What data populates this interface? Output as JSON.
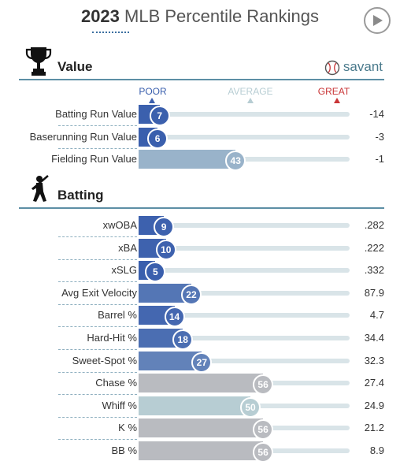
{
  "header": {
    "year": "2023",
    "title_rest": " MLB Percentile Rankings",
    "play_icon": "play-icon"
  },
  "scale": {
    "poor": "POOR",
    "average": "AVERAGE",
    "great": "GREAT"
  },
  "colors": {
    "poor": "#3a5fad",
    "great": "#c93537",
    "average": "#b7cdd3",
    "rule": "#5d8fa5"
  },
  "sections": {
    "value": {
      "title": "Value",
      "icon": "trophy-icon",
      "brand": "savant",
      "brand_icon": "baseball-icon",
      "rows": [
        {
          "label": "Batting Run Value",
          "percentile": 7,
          "value": "-14"
        },
        {
          "label": "Baserunning Run Value",
          "percentile": 6,
          "value": "-3"
        },
        {
          "label": "Fielding Run Value",
          "percentile": 43,
          "value": "-1"
        }
      ]
    },
    "batting": {
      "title": "Batting",
      "icon": "batter-icon",
      "rows": [
        {
          "label": "xwOBA",
          "percentile": 9,
          "value": ".282"
        },
        {
          "label": "xBA",
          "percentile": 10,
          "value": ".222"
        },
        {
          "label": "xSLG",
          "percentile": 5,
          "value": ".332"
        },
        {
          "label": "Avg Exit Velocity",
          "percentile": 22,
          "value": "87.9"
        },
        {
          "label": "Barrel %",
          "percentile": 14,
          "value": "4.7"
        },
        {
          "label": "Hard-Hit %",
          "percentile": 18,
          "value": "34.4"
        },
        {
          "label": "Sweet-Spot %",
          "percentile": 27,
          "value": "32.3"
        },
        {
          "label": "Chase %",
          "percentile": 56,
          "value": "27.4"
        },
        {
          "label": "Whiff %",
          "percentile": 50,
          "value": "24.9"
        },
        {
          "label": "K %",
          "percentile": 56,
          "value": "21.2"
        },
        {
          "label": "BB %",
          "percentile": 56,
          "value": "8.9"
        }
      ]
    }
  }
}
